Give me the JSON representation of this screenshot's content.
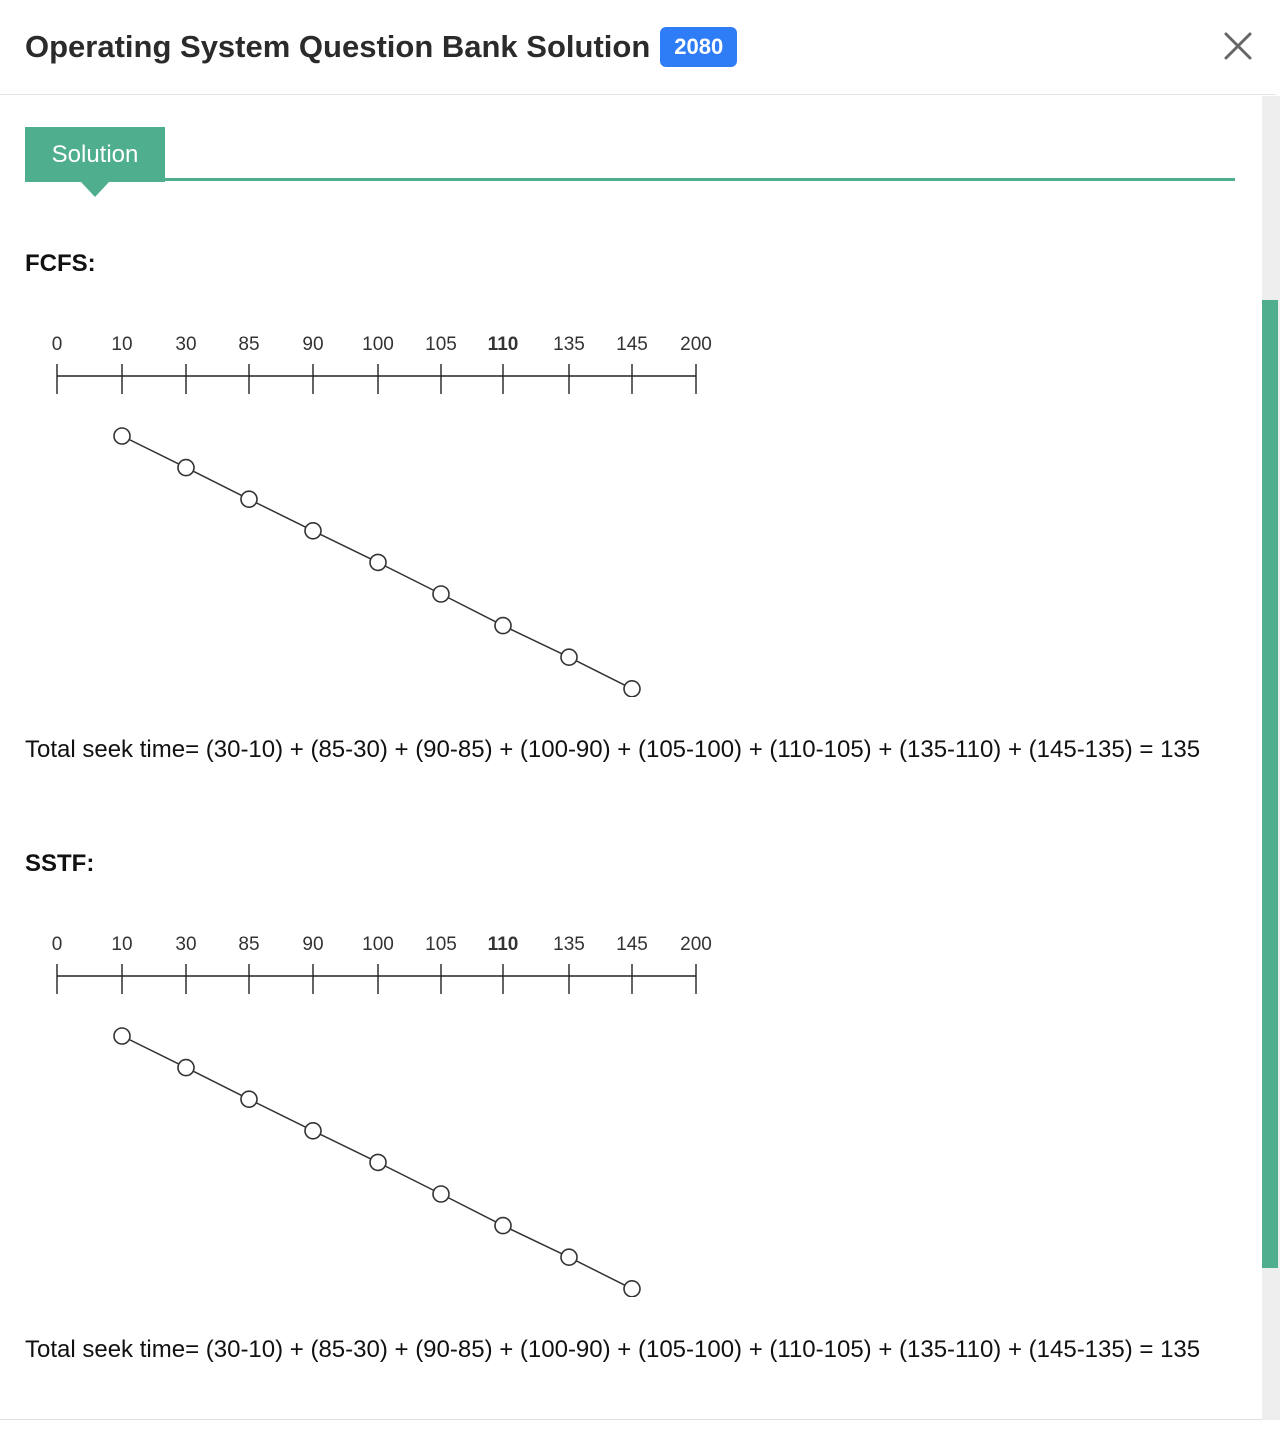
{
  "modal": {
    "title": "Operating System Question Bank Solution",
    "year_badge": "2080",
    "close_icon": "close-icon"
  },
  "tabs": {
    "solution_label": "Solution"
  },
  "sections": [
    {
      "heading": "FCFS:",
      "axis_labels": [
        "0",
        "10",
        "30",
        "85",
        "90",
        "100",
        "105",
        "110",
        "135",
        "145",
        "200"
      ],
      "visit_order": [
        "10",
        "30",
        "85",
        "90",
        "100",
        "105",
        "110",
        "135",
        "145"
      ],
      "formula": "Total seek time= (30-10) + (85-30) + (90-85) + (100-90) + (105-100) + (110-105) + (135-110) + (145-135) = 135"
    },
    {
      "heading": "SSTF:",
      "axis_labels": [
        "0",
        "10",
        "30",
        "85",
        "90",
        "100",
        "105",
        "110",
        "135",
        "145",
        "200"
      ],
      "visit_order": [
        "10",
        "30",
        "85",
        "90",
        "100",
        "105",
        "110",
        "135",
        "145"
      ],
      "formula": "Total seek time= (30-10) + (85-30) + (90-85) + (100-90) + (105-100) + (110-105) + (135-110) + (145-135) = 135"
    }
  ],
  "colors": {
    "accent": "#4fae8e",
    "badge": "#2f7df6"
  }
}
